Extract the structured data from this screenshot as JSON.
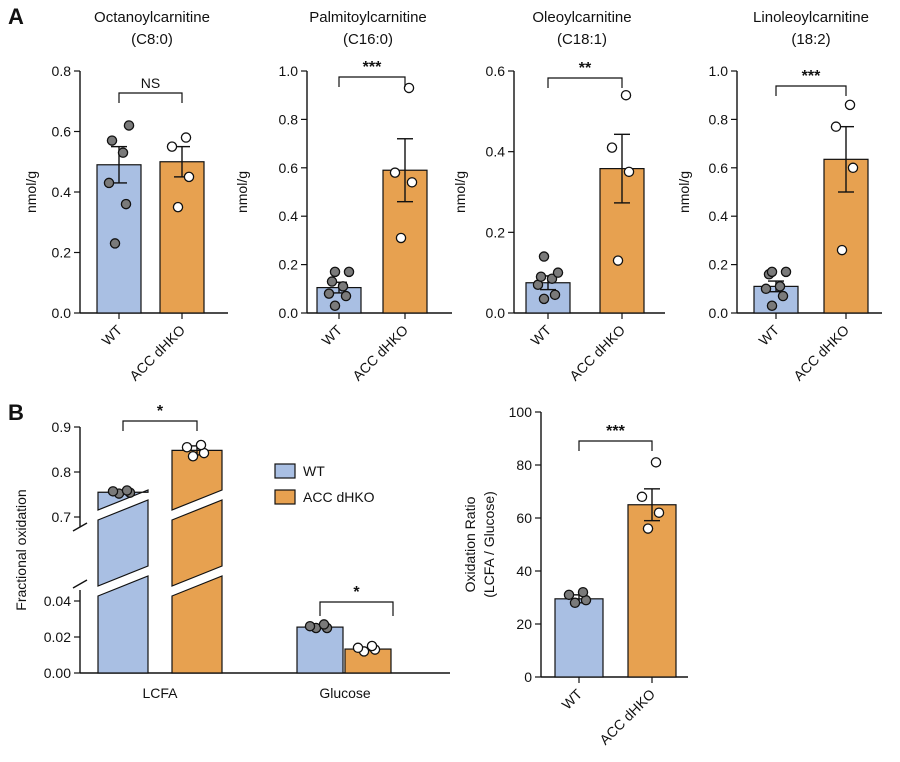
{
  "panels": {
    "A": "A",
    "B": "B"
  },
  "colors": {
    "wt": "#a9bfe3",
    "ko": "#e7a150",
    "dot_wt": "#7a7a7a",
    "dot_ko": "#ffffff"
  },
  "groups": [
    "WT",
    "ACC dHKO"
  ],
  "legend": {
    "wt": "WT",
    "ko": "ACC dHKO"
  },
  "chart_data": [
    {
      "type": "bar",
      "panel": "A",
      "title_lines": [
        "Octanoylcarnitine",
        "(C8:0)"
      ],
      "ylabel": "nmol/g",
      "ylim": [
        0,
        0.8
      ],
      "yticks": [
        "0.0",
        "0.2",
        "0.4",
        "0.6",
        "0.8"
      ],
      "categories": [
        "WT",
        "ACC dHKO"
      ],
      "values": [
        0.49,
        0.5
      ],
      "errors": [
        0.06,
        0.05
      ],
      "points": [
        [
          0.23,
          0.36,
          0.43,
          0.53,
          0.57,
          0.62
        ],
        [
          0.35,
          0.45,
          0.55,
          0.58
        ]
      ],
      "significance": "NS"
    },
    {
      "type": "bar",
      "panel": "A",
      "title_lines": [
        "Palmitoylcarnitine",
        "(C16:0)"
      ],
      "ylabel": "nmol/g",
      "ylim": [
        0,
        1.0
      ],
      "yticks": [
        "0.0",
        "0.2",
        "0.4",
        "0.6",
        "0.8",
        "1.0"
      ],
      "categories": [
        "WT",
        "ACC dHKO"
      ],
      "values": [
        0.105,
        0.59
      ],
      "errors": [
        0.022,
        0.13
      ],
      "points": [
        [
          0.03,
          0.07,
          0.08,
          0.11,
          0.13,
          0.17,
          0.17
        ],
        [
          0.31,
          0.54,
          0.58,
          0.93
        ]
      ],
      "significance": "***"
    },
    {
      "type": "bar",
      "panel": "A",
      "title_lines": [
        "Oleoylcarnitine",
        "(C18:1)"
      ],
      "ylabel": "nmol/g",
      "ylim": [
        0,
        0.6
      ],
      "yticks": [
        "0.0",
        "0.2",
        "0.4",
        "0.6"
      ],
      "categories": [
        "WT",
        "ACC dHKO"
      ],
      "values": [
        0.075,
        0.358
      ],
      "errors": [
        0.017,
        0.085
      ],
      "points": [
        [
          0.035,
          0.045,
          0.07,
          0.085,
          0.09,
          0.1,
          0.14
        ],
        [
          0.13,
          0.35,
          0.41,
          0.54
        ]
      ],
      "significance": "**"
    },
    {
      "type": "bar",
      "panel": "A",
      "title_lines": [
        "Linoleoylcarnitine",
        "(18:2)"
      ],
      "ylabel": "nmol/g",
      "ylim": [
        0,
        1.0
      ],
      "yticks": [
        "0.0",
        "0.2",
        "0.4",
        "0.6",
        "0.8",
        "1.0"
      ],
      "categories": [
        "WT",
        "ACC dHKO"
      ],
      "values": [
        0.11,
        0.635
      ],
      "errors": [
        0.022,
        0.135
      ],
      "points": [
        [
          0.03,
          0.07,
          0.1,
          0.11,
          0.16,
          0.17,
          0.17
        ],
        [
          0.26,
          0.6,
          0.77,
          0.86
        ]
      ],
      "significance": "***"
    },
    {
      "type": "bar",
      "panel": "B",
      "ylabel": "Fractional oxidation",
      "broken_axis": true,
      "lower_ylim": [
        0,
        0.04
      ],
      "upper_ylim": [
        0.7,
        0.9
      ],
      "lower_yticks": [
        "0.00",
        "0.02",
        "0.04"
      ],
      "upper_yticks": [
        "0.7",
        "0.8",
        "0.9"
      ],
      "categories": [
        "LCFA",
        "Glucose"
      ],
      "series": [
        {
          "name": "WT",
          "values": [
            0.755,
            0.0255
          ],
          "errors": [
            0.004,
            0.0008
          ],
          "points": [
            [
              0.752,
              0.754,
              0.757,
              0.759
            ],
            [
              0.025,
              0.025,
              0.026,
              0.027
            ]
          ]
        },
        {
          "name": "ACC dHKO",
          "values": [
            0.848,
            0.0133
          ],
          "errors": [
            0.01,
            0.0008
          ],
          "points": [
            [
              0.835,
              0.842,
              0.855,
              0.86
            ],
            [
              0.012,
              0.013,
              0.014,
              0.015
            ]
          ]
        }
      ],
      "significance": [
        "*",
        "*"
      ]
    },
    {
      "type": "bar",
      "panel": "B",
      "ylabel": "Oxidation Ratio",
      "ylabel2": "(LCFA / Glucose)",
      "ylim": [
        0,
        100
      ],
      "yticks": [
        "0",
        "20",
        "40",
        "60",
        "80",
        "100"
      ],
      "categories": [
        "WT",
        "ACC dHKO"
      ],
      "values": [
        29.5,
        65
      ],
      "errors": [
        1.5,
        6
      ],
      "points": [
        [
          28,
          29,
          31,
          32
        ],
        [
          56,
          62,
          68,
          81
        ]
      ],
      "significance": "***"
    }
  ]
}
